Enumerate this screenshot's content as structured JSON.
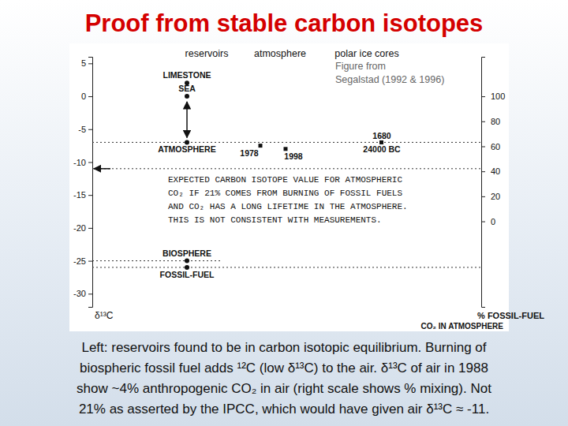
{
  "chart_data": {
    "type": "scatter",
    "title": "Proof from stable carbon isotopes",
    "subtitle": [
      "Figure from",
      "Segalstad (1992 & 1996)"
    ],
    "column_headers": [
      "reservoirs",
      "atmosphere",
      "polar ice cores"
    ],
    "ylabel": "δ¹³C",
    "y2label": [
      "% FOSSIL-FUEL",
      "CO₂ IN ATMOSPHERE"
    ],
    "ylim": [
      -32,
      6
    ],
    "yticks": [
      -30,
      -25,
      -20,
      -15,
      -10,
      -5,
      0,
      5
    ],
    "y2lim": [
      -68.4,
      131.6
    ],
    "y2ticks": [
      0,
      20,
      40,
      60,
      80,
      100
    ],
    "marker": "circle",
    "reservoirs": {
      "labels": [
        "LIMESTONE",
        "SEA",
        "ATMOSPHERE",
        "BIOSPHERE",
        "FOSSIL-FUEL"
      ],
      "values": [
        2,
        0,
        -7,
        -25,
        -26
      ]
    },
    "atmosphere": {
      "labels": [
        "1978",
        "1998"
      ],
      "values": [
        -7.5,
        -8
      ]
    },
    "ice_cores": {
      "label_lines": [
        "1680",
        "24000 BC"
      ],
      "value": -7
    },
    "expected": {
      "value": -11,
      "text": [
        "EXPECTED CARBON ISOTOPE VALUE FOR ATMOSPHERIC",
        "CO₂ IF 21% COMES FROM BURNING OF FOSSIL FUELS",
        "AND CO₂ HAS A LONG LIFETIME IN THE ATMOSPHERE.",
        "THIS IS NOT CONSISTENT WITH MEASUREMENTS."
      ]
    },
    "caption": [
      "Left: reservoirs found to be in carbon isotopic equilibrium. Burning of",
      "biospheric fossil fuel adds ¹²C (low δ¹³C) to the air. δ¹³C of air in 1988",
      "show ~4% anthropogenic CO₂ in air (right scale shows % mixing). Not",
      "21% as asserted by the IPCC, which would have given air δ¹³C ≈ -11."
    ]
  }
}
